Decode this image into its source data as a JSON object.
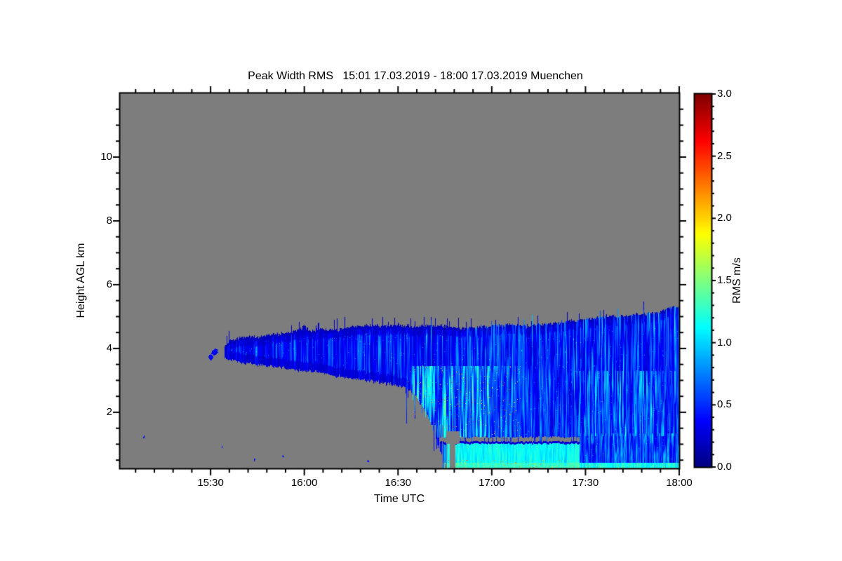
{
  "chart_data": {
    "type": "heatmap",
    "title": "Peak Width RMS   15:01 17.03.2019 - 18:00 17.03.2019 Muenchen",
    "quantity": "Peak Width RMS",
    "site": "Muenchen",
    "time_start": "15:01 17.03.2019",
    "time_end": "18:00 17.03.2019",
    "xlabel": "Time UTC",
    "ylabel": "Height AGL km",
    "x_axis": {
      "start_min_after_1500": 1,
      "end_min_after_1500": 180,
      "major_ticks": [
        {
          "label": "15:30",
          "min": 30
        },
        {
          "label": "16:00",
          "min": 60
        },
        {
          "label": "16:30",
          "min": 90
        },
        {
          "label": "17:00",
          "min": 120
        },
        {
          "label": "17:30",
          "min": 150
        },
        {
          "label": "18:00",
          "min": 180
        }
      ],
      "minor_tick_interval_min": 6
    },
    "y_axis": {
      "range_km": [
        0.24,
        12.0
      ],
      "major_ticks": [
        2,
        4,
        6,
        8,
        10
      ],
      "minor_tick_interval_km": 0.5
    },
    "colorbar": {
      "label": "RMS m/s",
      "range": [
        0.0,
        3.0
      ],
      "major_ticks": [
        "0.0",
        "0.5",
        "1.0",
        "1.5",
        "2.0",
        "2.5",
        "3.0"
      ],
      "minor_tick_interval": 0.1,
      "colormap": "jet"
    },
    "no_data_color": "#7d7d7d",
    "frame_color": "#000000",
    "field": {
      "seed": 7,
      "units": "m/s",
      "cloud_start_min": 34.5,
      "cloud_top_km": [
        [
          34.5,
          4.05
        ],
        [
          36,
          4.25
        ],
        [
          38,
          4.3
        ],
        [
          41,
          4.38
        ],
        [
          45,
          4.35
        ],
        [
          48,
          4.42
        ],
        [
          52,
          4.45
        ],
        [
          56,
          4.5
        ],
        [
          60,
          4.68
        ],
        [
          62,
          4.55
        ],
        [
          66,
          4.6
        ],
        [
          70,
          4.58
        ],
        [
          75,
          4.68
        ],
        [
          80,
          4.72
        ],
        [
          85,
          4.7
        ],
        [
          90,
          4.75
        ],
        [
          95,
          4.68
        ],
        [
          100,
          4.72
        ],
        [
          105,
          4.7
        ],
        [
          110,
          4.62
        ],
        [
          115,
          4.66
        ],
        [
          120,
          4.7
        ],
        [
          126,
          4.75
        ],
        [
          132,
          4.72
        ],
        [
          138,
          4.78
        ],
        [
          144,
          4.85
        ],
        [
          150,
          4.92
        ],
        [
          156,
          5.0
        ],
        [
          162,
          5.02
        ],
        [
          168,
          5.08
        ],
        [
          173,
          5.12
        ],
        [
          177,
          5.28
        ],
        [
          180,
          5.3
        ]
      ],
      "cloud_base_km": [
        [
          34.5,
          3.72
        ],
        [
          37,
          3.62
        ],
        [
          40,
          3.55
        ],
        [
          44,
          3.5
        ],
        [
          48,
          3.45
        ],
        [
          52,
          3.42
        ],
        [
          56,
          3.35
        ],
        [
          60,
          3.3
        ],
        [
          64,
          3.28
        ],
        [
          68,
          3.18
        ],
        [
          72,
          3.12
        ],
        [
          76,
          3.05
        ],
        [
          80,
          3.0
        ],
        [
          84,
          2.95
        ],
        [
          88,
          2.88
        ],
        [
          92,
          2.78
        ],
        [
          95,
          2.6
        ],
        [
          97,
          2.3
        ],
        [
          99,
          2.0
        ],
        [
          101,
          1.55
        ],
        [
          103,
          0.9
        ],
        [
          105,
          0.4
        ],
        [
          106,
          0.27
        ],
        [
          180,
          0.26
        ]
      ],
      "edge_noise_km": 0.11,
      "start_blobs": [
        [
          29.9,
          3.74
        ],
        [
          30.9,
          3.86
        ],
        [
          31.6,
          3.9
        ]
      ],
      "isolated_specks": [
        [
          8.6,
          1.23
        ],
        [
          33.6,
          0.92
        ],
        [
          44,
          0.53
        ],
        [
          53,
          0.64
        ],
        [
          80.3,
          0.48
        ]
      ],
      "descend_streaks": {
        "t0": 92,
        "t1": 106,
        "max_depth_km": 1.7,
        "gate": 0.55
      },
      "gray_gaps_low": {
        "t0": 99,
        "t1": 106.5,
        "h_max": 1.6,
        "gate": 0.45
      },
      "mushroom": {
        "stem_t": [
          106.6,
          108.4
        ],
        "stem_h": [
          0.26,
          1.3
        ],
        "cap_t": [
          105.7,
          109.7
        ],
        "cap_h": [
          1.0,
          1.4
        ]
      },
      "gray_strip": {
        "t0": 103.5,
        "t1": 148,
        "h_lo_km": 1.08,
        "thickness_km": 0.14,
        "wave_km": 0.05,
        "break_gate": 0.7
      },
      "regions": {
        "upper_base_rms": 0.2,
        "mid_cyan": {
          "t0": 92,
          "t1": 135,
          "t_fade": 118,
          "h0": 1.2,
          "h1": 3.45,
          "rms": [
            0.5,
            1.4
          ]
        },
        "low_bright": {
          "t0": 104,
          "t1": 148,
          "h1": 1.06,
          "rms": [
            0.85,
            1.4
          ]
        },
        "low_after": {
          "h1": 1.35,
          "rms": [
            0.3,
            0.8
          ]
        },
        "bottom_rows_h_km": 0.42,
        "right_cyan": {
          "t0": 147,
          "t1": 180,
          "h0": 1.25,
          "h1": 3.3
        },
        "warm_speckle_rms": [
          1.6,
          2.6
        ]
      }
    }
  }
}
